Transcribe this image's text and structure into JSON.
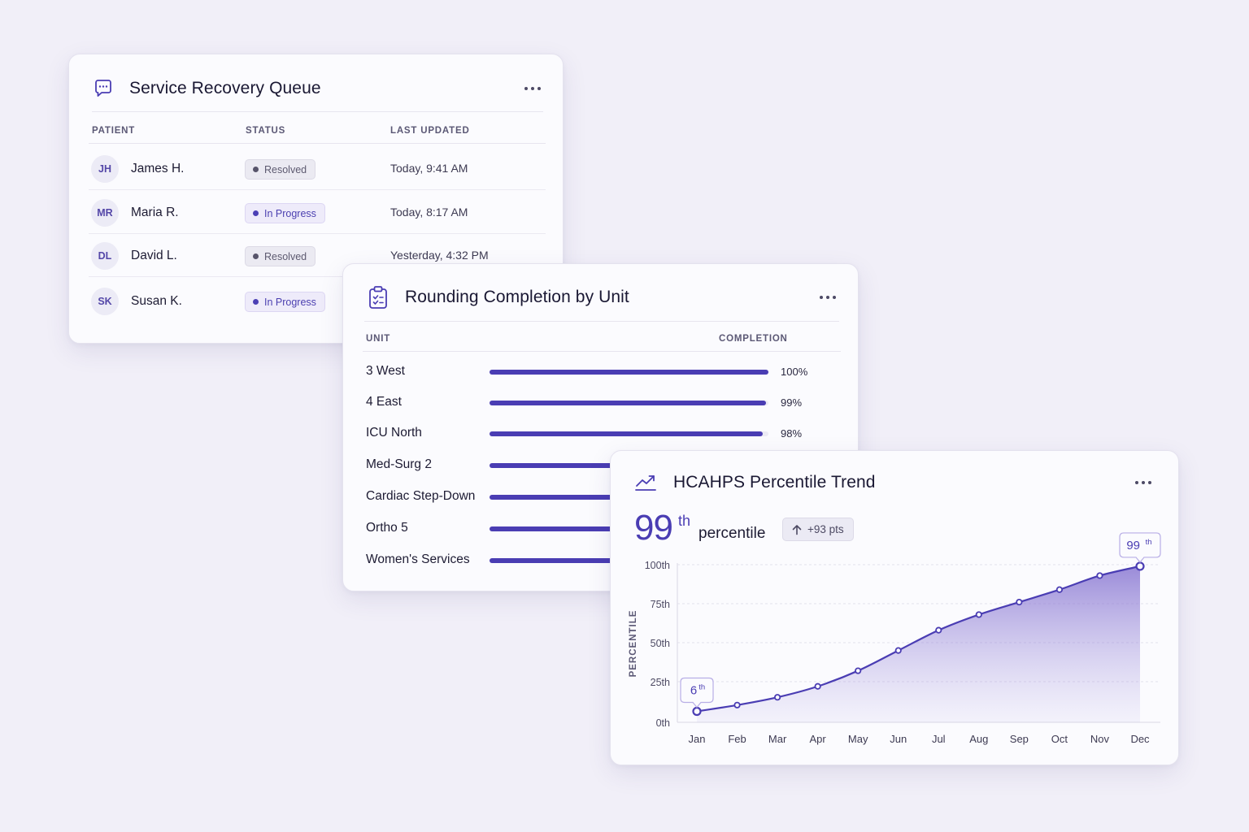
{
  "queue": {
    "title": "Service Recovery Queue",
    "icon": "chat-bubble-icon",
    "columns": [
      "PATIENT",
      "STATUS",
      "LAST UPDATED"
    ],
    "rows": [
      {
        "initials": "JH",
        "name": "James H.",
        "status": "Resolved",
        "status_kind": "resolved",
        "updated": "Today, 9:41 AM"
      },
      {
        "initials": "MR",
        "name": "Maria R.",
        "status": "In Progress",
        "status_kind": "progress",
        "updated": "Today, 8:17 AM"
      },
      {
        "initials": "DL",
        "name": "David L.",
        "status": "Resolved",
        "status_kind": "resolved",
        "updated": "Yesterday, 4:32 PM"
      },
      {
        "initials": "SK",
        "name": "Susan K.",
        "status": "In Progress",
        "status_kind": "progress",
        "updated": ""
      }
    ]
  },
  "rounding": {
    "title": "Rounding Completion by Unit",
    "icon": "clipboard-check-icon",
    "columns": [
      "UNIT",
      "COMPLETION"
    ],
    "rows": [
      {
        "unit": "3 West",
        "value": 100,
        "label": "100%"
      },
      {
        "unit": "4 East",
        "value": 99,
        "label": "99%"
      },
      {
        "unit": "ICU North",
        "value": 98,
        "label": "98%"
      },
      {
        "unit": "Med-Surg 2",
        "value": 97,
        "label": ""
      },
      {
        "unit": "Cardiac Step-Down",
        "value": 97,
        "label": ""
      },
      {
        "unit": "Ortho 5",
        "value": 96,
        "label": ""
      },
      {
        "unit": "Women's Services",
        "value": 96,
        "label": ""
      }
    ]
  },
  "trend": {
    "title": "HCAHPS Percentile Trend",
    "icon": "trend-up-icon",
    "headline_value": "99",
    "headline_sup": "th",
    "headline_word": "percentile",
    "delta": "+93 pts",
    "colors": {
      "accent": "#4a3db3"
    }
  },
  "chart_data": {
    "type": "area",
    "categories": [
      "Jan",
      "Feb",
      "Mar",
      "Apr",
      "May",
      "Jun",
      "Jul",
      "Aug",
      "Sep",
      "Oct",
      "Nov",
      "Dec"
    ],
    "series": [
      {
        "values": [
          6,
          10,
          15,
          22,
          32,
          45,
          58,
          68,
          76,
          84,
          93,
          99
        ]
      }
    ],
    "ylabel": "PERCENTILE",
    "yticks": [
      "0th",
      "25th",
      "50th",
      "75th",
      "100th"
    ],
    "ytick_values": [
      0,
      25,
      50,
      75,
      100
    ],
    "ylim": [
      0,
      100
    ],
    "grid": true,
    "annotations": [
      {
        "month": "Jan",
        "value": 6,
        "text": "6",
        "sup": "th"
      },
      {
        "month": "Dec",
        "value": 99,
        "text": "99",
        "sup": "th"
      }
    ]
  }
}
